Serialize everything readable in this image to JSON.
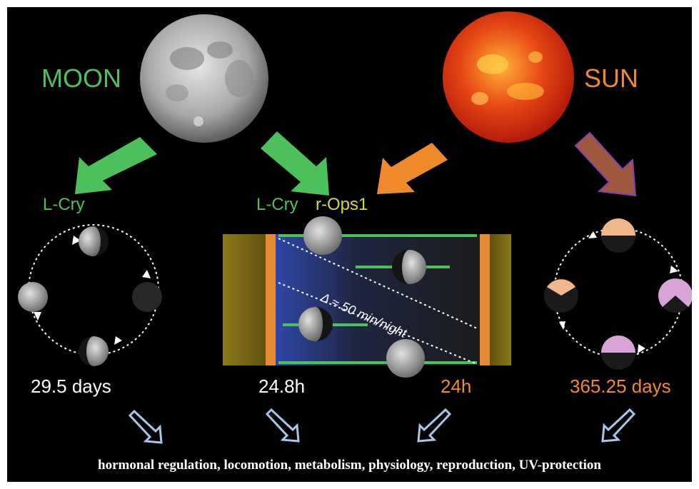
{
  "labels": {
    "moon": "MOON",
    "sun": "SUN",
    "receptor_left": "L-Cry",
    "receptor_center_1": "L-Cry",
    "receptor_center_2": "r-Ops1",
    "delta_note": "Δ ≈ 50 min/night"
  },
  "periods": {
    "lunar_month": "29.5 days",
    "lunar_day": "24.8h",
    "solar_day": "24h",
    "solar_year": "365.25 days"
  },
  "outcomes": "hormonal regulation, locomotion, metabolism, physiology, reproduction, UV-protection",
  "colors": {
    "moon_green": "#4cc15b",
    "sun_orange": "#ef8a2c",
    "r_ops_yellow": "#d4dc2c",
    "background": "#000000",
    "arrow_blue": "#a7c6e8"
  },
  "icons": [
    "moon-image",
    "sun-image",
    "moon-phase-icon",
    "day-length-icon",
    "thick-arrow-icon",
    "outline-arrow-icon"
  ]
}
